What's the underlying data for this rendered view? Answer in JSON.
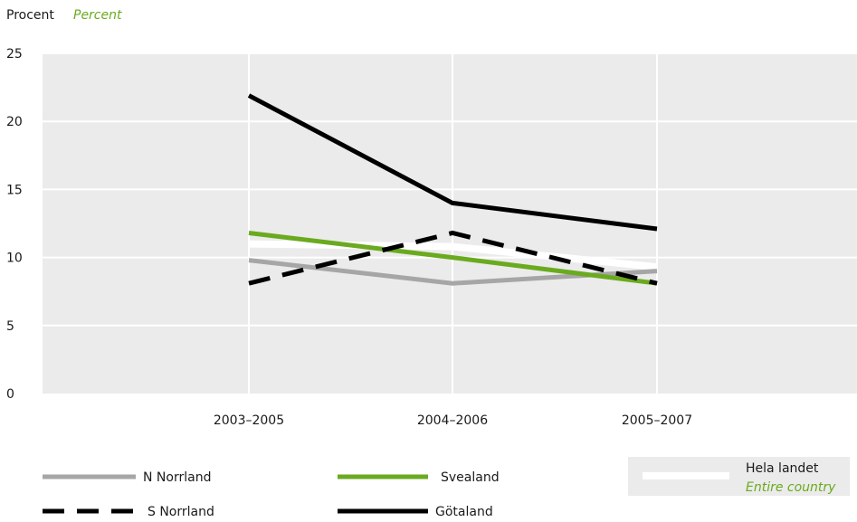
{
  "chart_data": {
    "type": "line",
    "ylabel": "Procent",
    "ylabel_alt": "Percent",
    "categories": [
      "2003–2005",
      "2004–2006",
      "2005–2007"
    ],
    "ylim": [
      0,
      25
    ],
    "yticks": [
      0,
      5,
      10,
      15,
      20,
      25
    ],
    "grid": true,
    "series": [
      {
        "name": "N Norrland",
        "values": [
          9.8,
          8.1,
          9.0
        ],
        "color": "#a6a6a6",
        "dash": false
      },
      {
        "name": "S Norrland",
        "values": [
          8.1,
          11.8,
          8.1
        ],
        "color": "#000000",
        "dash": true
      },
      {
        "name": "Svealand",
        "values": [
          11.8,
          10.0,
          8.1
        ],
        "color": "#6aaa1f",
        "dash": false
      },
      {
        "name": "Götaland",
        "values": [
          21.9,
          14.0,
          12.1
        ],
        "color": "#000000",
        "dash": false
      },
      {
        "name": "Hela landet",
        "name_alt": "Entire country",
        "values": [
          11.0,
          10.8,
          9.3
        ],
        "color": "#ffffff",
        "dash": false
      }
    ]
  },
  "colors": {
    "plot_background": "#ebebeb",
    "gridline": "#ffffff",
    "accent": "#6aaa1f"
  }
}
